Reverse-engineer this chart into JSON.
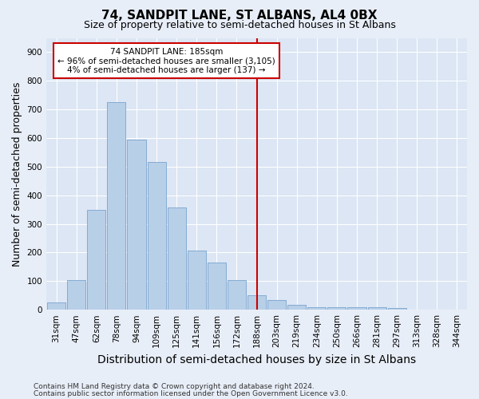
{
  "title": "74, SANDPIT LANE, ST ALBANS, AL4 0BX",
  "subtitle": "Size of property relative to semi-detached houses in St Albans",
  "xlabel": "Distribution of semi-detached houses by size in St Albans",
  "ylabel": "Number of semi-detached properties",
  "categories": [
    "31sqm",
    "47sqm",
    "62sqm",
    "78sqm",
    "94sqm",
    "109sqm",
    "125sqm",
    "141sqm",
    "156sqm",
    "172sqm",
    "188sqm",
    "203sqm",
    "219sqm",
    "234sqm",
    "250sqm",
    "266sqm",
    "281sqm",
    "297sqm",
    "313sqm",
    "328sqm",
    "344sqm"
  ],
  "values": [
    25,
    105,
    350,
    725,
    595,
    515,
    358,
    207,
    165,
    105,
    52,
    33,
    18,
    10,
    8,
    10,
    8,
    5,
    0,
    0,
    0
  ],
  "bar_color": "#b8cfe8",
  "bar_edge_color": "#6898c8",
  "vline_index": 10,
  "annotation_title": "74 SANDPIT LANE: 185sqm",
  "annotation_line1": "← 96% of semi-detached houses are smaller (3,105)",
  "annotation_line2": "4% of semi-detached houses are larger (137) →",
  "annotation_box_color": "#ffffff",
  "annotation_box_edge": "#cc0000",
  "vline_color": "#cc0000",
  "ylim": [
    0,
    950
  ],
  "yticks": [
    0,
    100,
    200,
    300,
    400,
    500,
    600,
    700,
    800,
    900
  ],
  "footer1": "Contains HM Land Registry data © Crown copyright and database right 2024.",
  "footer2": "Contains public sector information licensed under the Open Government Licence v3.0.",
  "bg_color": "#e8eef8",
  "plot_bg_color": "#dce6f4",
  "title_fontsize": 11,
  "subtitle_fontsize": 9,
  "axis_label_fontsize": 9,
  "tick_fontsize": 7.5,
  "footer_fontsize": 6.5
}
